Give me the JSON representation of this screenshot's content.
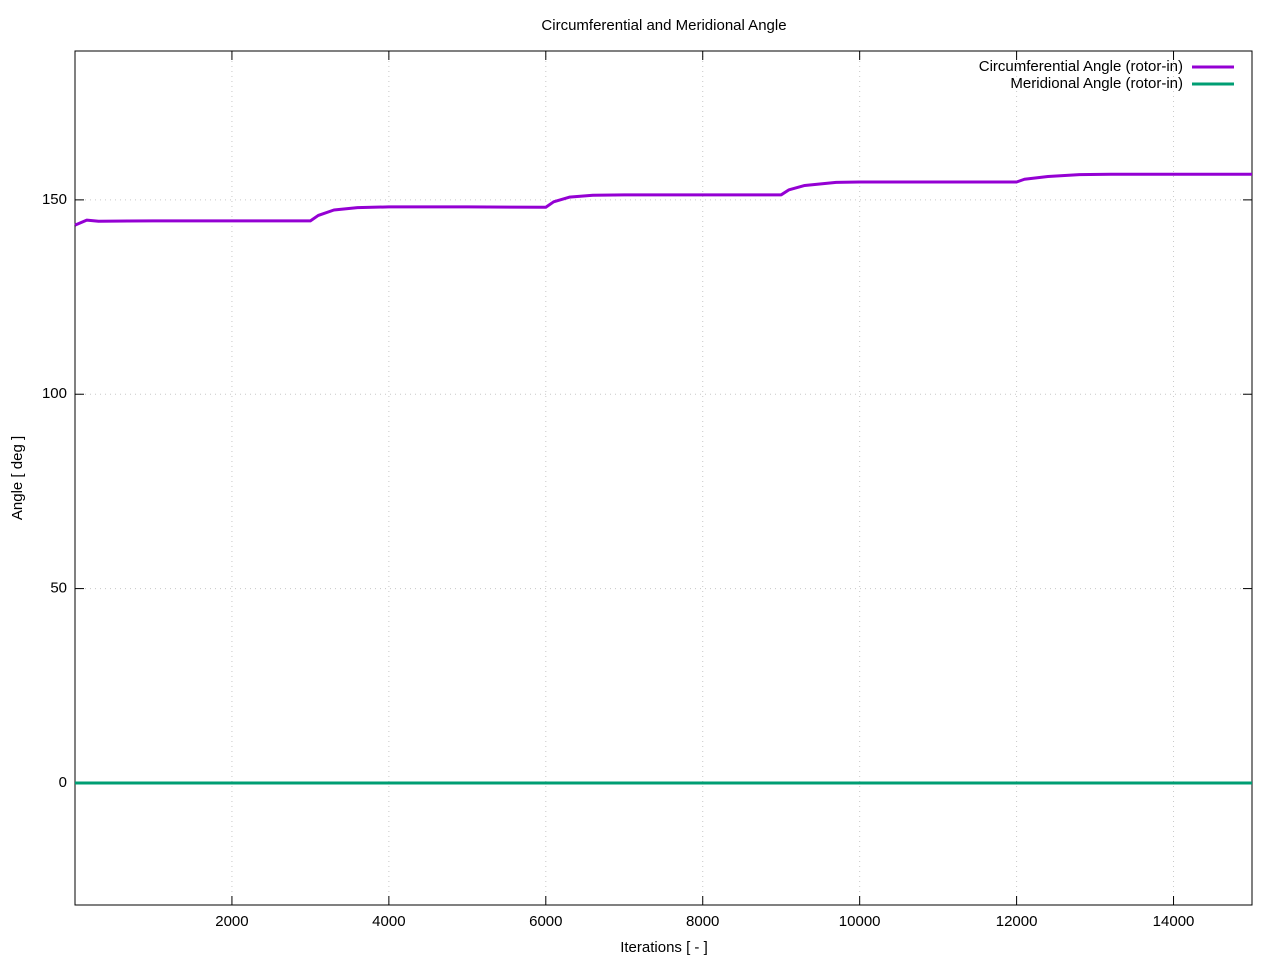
{
  "chart_data": {
    "type": "line",
    "title": "Circumferential and Meridional Angle",
    "xlabel": "Iterations [ - ]",
    "ylabel": "Angle [ deg ]",
    "x": [
      0,
      150,
      300,
      1000,
      3000,
      3100,
      3300,
      3600,
      4000,
      5000,
      6000,
      6100,
      6300,
      6600,
      7000,
      8000,
      9000,
      9100,
      9300,
      9700,
      10000,
      11000,
      12000,
      12100,
      12400,
      12800,
      13200,
      14000,
      15000
    ],
    "series": [
      {
        "name": "Circumferential Angle (rotor-in)",
        "color": "#9400d3",
        "values": [
          143.5,
          144.8,
          144.5,
          144.6,
          144.6,
          146,
          147.4,
          148,
          148.2,
          148.2,
          148.1,
          149.5,
          150.7,
          151.2,
          151.3,
          151.3,
          151.3,
          152.6,
          153.7,
          154.5,
          154.6,
          154.6,
          154.6,
          155.3,
          156,
          156.5,
          156.6,
          156.6,
          156.6
        ]
      },
      {
        "name": "Meridional Angle (rotor-in)",
        "color": "#009e73",
        "values": [
          0,
          0,
          0,
          0,
          0,
          0,
          0,
          0,
          0,
          0,
          0,
          0,
          0,
          0,
          0,
          0,
          0,
          0,
          0,
          0,
          0,
          0,
          0,
          0,
          0,
          0,
          0,
          0,
          0
        ]
      }
    ],
    "xlim": [
      0,
      15000
    ],
    "xticks": [
      2000,
      4000,
      6000,
      8000,
      10000,
      12000,
      14000
    ],
    "ylim": [
      -31.4,
      188.3
    ],
    "yticks": [
      0,
      50,
      100,
      150
    ],
    "grid": true,
    "legend": "top-right"
  }
}
